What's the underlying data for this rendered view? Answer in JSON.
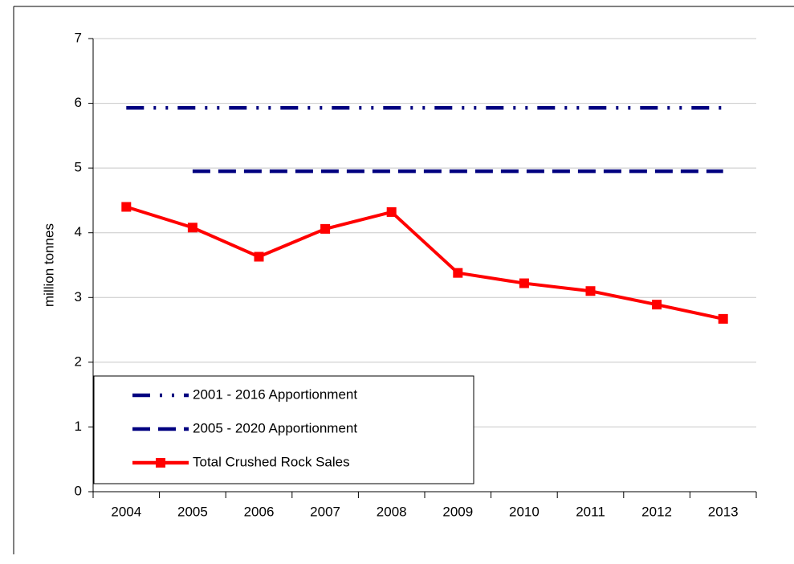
{
  "chart_data": {
    "type": "line",
    "y_label": "million tonnes",
    "categories": [
      "2004",
      "2005",
      "2006",
      "2007",
      "2008",
      "2009",
      "2010",
      "2011",
      "2012",
      "2013"
    ],
    "series": [
      {
        "name": "2001 - 2016 Apportionment",
        "color": "#000080",
        "line_style": "dash-dot-dot",
        "values": [
          5.93,
          5.93,
          5.93,
          5.93,
          5.93,
          5.93,
          5.93,
          5.93,
          5.93,
          5.93
        ]
      },
      {
        "name": "2005 - 2020 Apportionment",
        "color": "#000080",
        "line_style": "dashed",
        "values": [
          null,
          4.95,
          4.95,
          4.95,
          4.95,
          4.95,
          4.95,
          4.95,
          4.95,
          4.95
        ]
      },
      {
        "name": "Total Crushed Rock Sales",
        "color": "#ff0000",
        "line_style": "solid",
        "marker": "square",
        "values": [
          4.4,
          4.08,
          3.63,
          4.06,
          4.32,
          3.38,
          3.22,
          3.1,
          2.89,
          2.67
        ]
      }
    ],
    "ylim": [
      0,
      7
    ],
    "yticks": [
      0,
      1,
      2,
      3,
      4,
      5,
      6,
      7
    ],
    "grid": true,
    "legend": "lower left"
  }
}
